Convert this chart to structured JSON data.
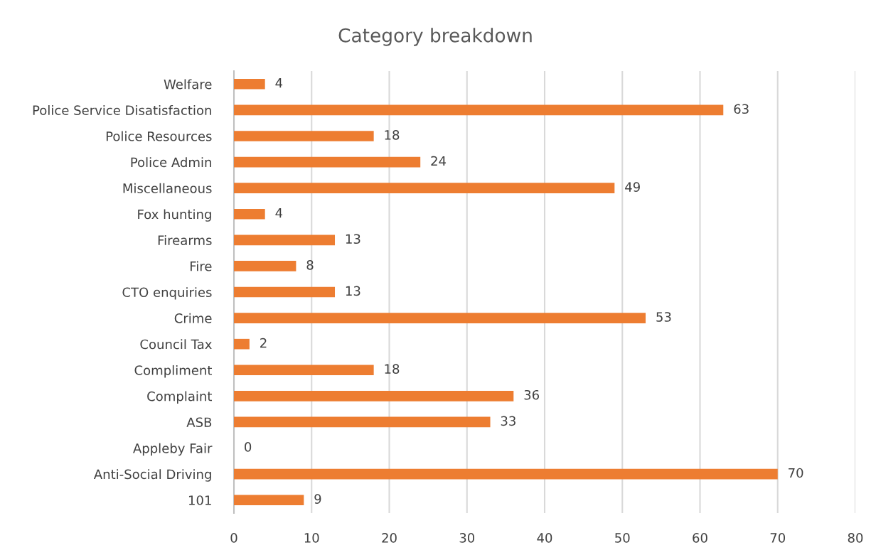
{
  "chart_data": {
    "type": "bar",
    "orientation": "horizontal",
    "title": "Category breakdown",
    "categories": [
      "Welfare",
      "Police Service Disatisfaction",
      "Police Resources",
      "Police Admin",
      "Miscellaneous",
      "Fox hunting",
      "Firearms",
      "Fire",
      "CTO enquiries",
      "Crime",
      "Council Tax",
      "Compliment",
      "Complaint",
      "ASB",
      "Appleby Fair",
      "Anti-Social Driving",
      "101"
    ],
    "values": [
      4,
      63,
      18,
      24,
      49,
      4,
      13,
      8,
      13,
      53,
      2,
      18,
      36,
      33,
      0,
      70,
      9
    ],
    "color": "#ed7d31",
    "data_labels": true,
    "xlim": [
      0,
      80
    ],
    "xticks": [
      0,
      10,
      20,
      30,
      40,
      50,
      60,
      70,
      80
    ],
    "grid": "x",
    "legend": false
  }
}
